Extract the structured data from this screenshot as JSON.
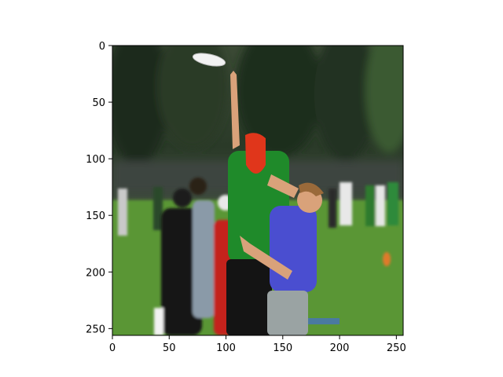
{
  "figure": {
    "background": "#ffffff",
    "axes_frame_color": "#000000"
  },
  "image": {
    "description_icon": "photo-frisbee-players",
    "sky_color": "#2e3a2b",
    "trees_color": "#253423",
    "grass_color": "#5f9a3a",
    "jersey_green": "#1f8a2a",
    "jersey_purple": "#4a4ed0",
    "cap_red": "#e0361b",
    "disc_color": "#f2f2f2"
  },
  "axes": {
    "xlim": [
      0,
      256
    ],
    "ylim": [
      256,
      0
    ],
    "xticks": [
      0,
      50,
      100,
      150,
      200,
      250
    ],
    "yticks": [
      0,
      50,
      100,
      150,
      200,
      250
    ],
    "xtick_labels": [
      "0",
      "50",
      "100",
      "150",
      "200",
      "250"
    ],
    "ytick_labels": [
      "0",
      "50",
      "100",
      "150",
      "200",
      "250"
    ]
  }
}
